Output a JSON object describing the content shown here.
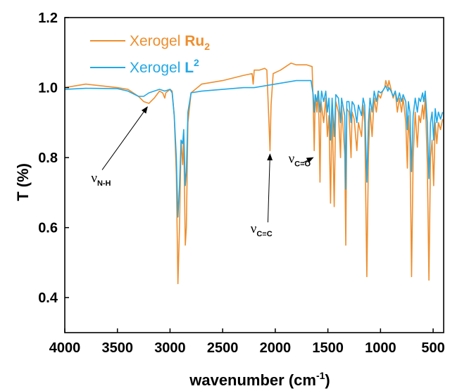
{
  "chart_data": {
    "type": "line",
    "title": "",
    "xlabel": "wavenumber (cm",
    "xlabel_sup": "-1",
    "xlabel_end": ")",
    "ylabel": "T (%)",
    "xlim": [
      4000,
      400
    ],
    "ylim": [
      0.3,
      1.2
    ],
    "x_ticks": [
      4000,
      3500,
      3000,
      2500,
      2000,
      1500,
      1000,
      500
    ],
    "x_tick_labels": [
      "4000",
      "3500",
      "3000",
      "2500",
      "2000",
      "1500",
      "1000",
      "500"
    ],
    "y_ticks": [
      0.4,
      0.6,
      0.8,
      1.0,
      1.2
    ],
    "y_tick_labels": [
      "0.4",
      "0.6",
      "0.8",
      "1.0",
      "1.2"
    ],
    "grid": false,
    "legend_position": "top-left",
    "series": [
      {
        "name": "Xerogel Ru2",
        "legend_prefix": "Xerogel ",
        "legend_bold": "Ru",
        "legend_script": "2",
        "legend_script_type": "sub",
        "color": "#ee8e2e",
        "points": [
          [
            4000,
            1.0
          ],
          [
            3800,
            1.01
          ],
          [
            3500,
            1.0
          ],
          [
            3400,
            0.995
          ],
          [
            3300,
            0.975
          ],
          [
            3250,
            0.96
          ],
          [
            3200,
            0.955
          ],
          [
            3150,
            0.97
          ],
          [
            3100,
            0.99
          ],
          [
            3070,
            0.985
          ],
          [
            3050,
            0.97
          ],
          [
            3040,
            0.985
          ],
          [
            3000,
            0.995
          ],
          [
            2980,
            0.99
          ],
          [
            2960,
            0.92
          ],
          [
            2940,
            0.75
          ],
          [
            2925,
            0.44
          ],
          [
            2910,
            0.6
          ],
          [
            2895,
            0.85
          ],
          [
            2880,
            0.78
          ],
          [
            2870,
            0.86
          ],
          [
            2855,
            0.55
          ],
          [
            2845,
            0.6
          ],
          [
            2830,
            0.9
          ],
          [
            2800,
            0.985
          ],
          [
            2700,
            1.01
          ],
          [
            2500,
            1.02
          ],
          [
            2300,
            1.035
          ],
          [
            2220,
            1.04
          ],
          [
            2210,
            1.01
          ],
          [
            2200,
            1.05
          ],
          [
            2150,
            1.05
          ],
          [
            2100,
            1.055
          ],
          [
            2080,
            1.05
          ],
          [
            2060,
            0.9
          ],
          [
            2050,
            0.82
          ],
          [
            2040,
            0.95
          ],
          [
            2020,
            1.04
          ],
          [
            1950,
            1.05
          ],
          [
            1900,
            1.06
          ],
          [
            1850,
            1.07
          ],
          [
            1800,
            1.065
          ],
          [
            1700,
            1.065
          ],
          [
            1650,
            1.06
          ],
          [
            1640,
            0.96
          ],
          [
            1630,
            0.82
          ],
          [
            1620,
            0.98
          ],
          [
            1605,
            0.93
          ],
          [
            1595,
            0.99
          ],
          [
            1585,
            0.91
          ],
          [
            1575,
            0.73
          ],
          [
            1565,
            0.96
          ],
          [
            1540,
            0.9
          ],
          [
            1520,
            0.97
          ],
          [
            1505,
            0.86
          ],
          [
            1490,
            0.92
          ],
          [
            1475,
            0.67
          ],
          [
            1460,
            0.95
          ],
          [
            1440,
            0.66
          ],
          [
            1425,
            0.96
          ],
          [
            1400,
            0.93
          ],
          [
            1380,
            0.8
          ],
          [
            1370,
            0.95
          ],
          [
            1340,
            0.81
          ],
          [
            1330,
            0.55
          ],
          [
            1320,
            0.94
          ],
          [
            1300,
            0.93
          ],
          [
            1280,
            0.8
          ],
          [
            1270,
            0.93
          ],
          [
            1250,
            0.91
          ],
          [
            1225,
            0.82
          ],
          [
            1210,
            0.9
          ],
          [
            1180,
            0.86
          ],
          [
            1165,
            0.95
          ],
          [
            1150,
            0.9
          ],
          [
            1130,
            0.46
          ],
          [
            1115,
            0.8
          ],
          [
            1100,
            0.94
          ],
          [
            1080,
            0.86
          ],
          [
            1060,
            0.97
          ],
          [
            1040,
            0.93
          ],
          [
            1020,
            0.98
          ],
          [
            1000,
            0.97
          ],
          [
            980,
            0.99
          ],
          [
            960,
            1.0
          ],
          [
            950,
            1.02
          ],
          [
            930,
            1.0
          ],
          [
            920,
            1.02
          ],
          [
            900,
            0.995
          ],
          [
            880,
            0.97
          ],
          [
            860,
            0.99
          ],
          [
            840,
            0.93
          ],
          [
            820,
            0.97
          ],
          [
            800,
            0.93
          ],
          [
            785,
            0.97
          ],
          [
            760,
            0.9
          ],
          [
            745,
            0.77
          ],
          [
            735,
            0.92
          ],
          [
            720,
            0.84
          ],
          [
            705,
            0.46
          ],
          [
            690,
            0.8
          ],
          [
            670,
            0.93
          ],
          [
            650,
            0.83
          ],
          [
            635,
            0.92
          ],
          [
            620,
            0.9
          ],
          [
            600,
            0.95
          ],
          [
            590,
            0.91
          ],
          [
            575,
            0.97
          ],
          [
            555,
            0.78
          ],
          [
            540,
            0.45
          ],
          [
            525,
            0.8
          ],
          [
            510,
            0.85
          ],
          [
            495,
            0.72
          ],
          [
            480,
            0.9
          ],
          [
            465,
            0.84
          ],
          [
            450,
            0.9
          ],
          [
            430,
            0.88
          ],
          [
            410,
            0.91
          ]
        ]
      },
      {
        "name": "Xerogel L2",
        "legend_prefix": "Xerogel ",
        "legend_bold": "L",
        "legend_script": "2",
        "legend_script_type": "sup",
        "color": "#22a8e6",
        "points": [
          [
            4000,
            0.995
          ],
          [
            3800,
            0.998
          ],
          [
            3500,
            0.997
          ],
          [
            3400,
            0.99
          ],
          [
            3300,
            0.975
          ],
          [
            3250,
            0.975
          ],
          [
            3200,
            0.985
          ],
          [
            3150,
            0.99
          ],
          [
            3100,
            0.995
          ],
          [
            3050,
            0.99
          ],
          [
            3000,
            0.995
          ],
          [
            2980,
            0.985
          ],
          [
            2960,
            0.92
          ],
          [
            2940,
            0.8
          ],
          [
            2925,
            0.63
          ],
          [
            2910,
            0.72
          ],
          [
            2895,
            0.85
          ],
          [
            2880,
            0.84
          ],
          [
            2870,
            0.88
          ],
          [
            2855,
            0.72
          ],
          [
            2845,
            0.76
          ],
          [
            2830,
            0.93
          ],
          [
            2800,
            0.985
          ],
          [
            2700,
            0.99
          ],
          [
            2500,
            0.995
          ],
          [
            2300,
            1.0
          ],
          [
            2200,
            1.0
          ],
          [
            2100,
            1.005
          ],
          [
            2000,
            1.01
          ],
          [
            1900,
            1.015
          ],
          [
            1800,
            1.02
          ],
          [
            1700,
            1.02
          ],
          [
            1660,
            1.02
          ],
          [
            1650,
            1.0
          ],
          [
            1640,
            0.98
          ],
          [
            1630,
            0.93
          ],
          [
            1620,
            0.98
          ],
          [
            1605,
            0.96
          ],
          [
            1590,
            0.99
          ],
          [
            1575,
            0.93
          ],
          [
            1560,
            0.99
          ],
          [
            1540,
            0.96
          ],
          [
            1520,
            0.99
          ],
          [
            1505,
            0.93
          ],
          [
            1490,
            0.97
          ],
          [
            1475,
            0.85
          ],
          [
            1460,
            0.97
          ],
          [
            1440,
            0.86
          ],
          [
            1425,
            0.98
          ],
          [
            1400,
            0.97
          ],
          [
            1380,
            0.9
          ],
          [
            1370,
            0.97
          ],
          [
            1340,
            0.92
          ],
          [
            1330,
            0.71
          ],
          [
            1320,
            0.96
          ],
          [
            1300,
            0.96
          ],
          [
            1280,
            0.9
          ],
          [
            1270,
            0.96
          ],
          [
            1250,
            0.95
          ],
          [
            1225,
            0.9
          ],
          [
            1210,
            0.95
          ],
          [
            1180,
            0.92
          ],
          [
            1165,
            0.97
          ],
          [
            1150,
            0.95
          ],
          [
            1130,
            0.73
          ],
          [
            1115,
            0.9
          ],
          [
            1100,
            0.97
          ],
          [
            1080,
            0.93
          ],
          [
            1060,
            0.99
          ],
          [
            1040,
            0.96
          ],
          [
            1020,
            0.99
          ],
          [
            1000,
            0.985
          ],
          [
            980,
            0.99
          ],
          [
            960,
            1.0
          ],
          [
            950,
            1.005
          ],
          [
            930,
            0.99
          ],
          [
            920,
            1.0
          ],
          [
            900,
            0.99
          ],
          [
            880,
            0.975
          ],
          [
            860,
            0.99
          ],
          [
            840,
            0.96
          ],
          [
            820,
            0.985
          ],
          [
            800,
            0.96
          ],
          [
            785,
            0.98
          ],
          [
            760,
            0.96
          ],
          [
            745,
            0.88
          ],
          [
            735,
            0.96
          ],
          [
            720,
            0.93
          ],
          [
            705,
            0.76
          ],
          [
            690,
            0.92
          ],
          [
            670,
            0.97
          ],
          [
            650,
            0.93
          ],
          [
            635,
            0.97
          ],
          [
            620,
            0.96
          ],
          [
            600,
            0.985
          ],
          [
            590,
            0.96
          ],
          [
            575,
            0.99
          ],
          [
            555,
            0.9
          ],
          [
            540,
            0.74
          ],
          [
            525,
            0.9
          ],
          [
            510,
            0.93
          ],
          [
            495,
            0.85
          ],
          [
            480,
            0.94
          ],
          [
            465,
            0.9
          ],
          [
            450,
            0.93
          ],
          [
            430,
            0.91
          ],
          [
            410,
            0.93
          ]
        ]
      }
    ],
    "annotations": [
      {
        "main": "ν",
        "sub": "N-H",
        "arrow_from": [
          3645,
          0.765
        ],
        "arrow_to": [
          3215,
          0.945
        ],
        "text_at": [
          3750,
          0.73
        ]
      },
      {
        "main": "ν",
        "sub": "C≡C",
        "arrow_from": [
          2070,
          0.615
        ],
        "arrow_to": [
          2050,
          0.81
        ],
        "text_at": [
          2235,
          0.585
        ]
      },
      {
        "main": "ν",
        "sub": "C=O",
        "arrow_from": [
          1740,
          0.785
        ],
        "arrow_to": [
          1640,
          0.8
        ],
        "text_at": [
          1875,
          0.785
        ]
      }
    ]
  }
}
